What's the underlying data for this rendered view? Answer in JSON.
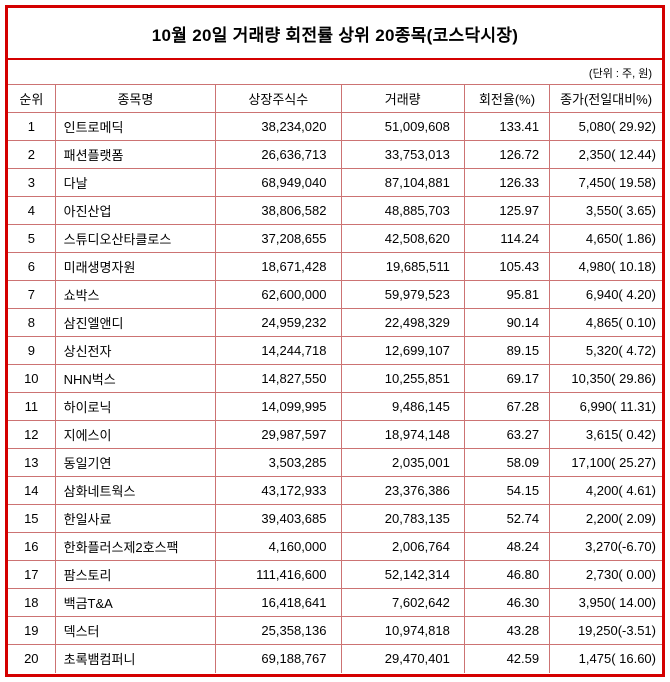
{
  "title": "10월 20일 거래량 회전률 상위 20종목(코스닥시장)",
  "unit_note": "(단위 : 주, 원)",
  "colors": {
    "frame_border": "#d40000",
    "grid_line": "#cc7373",
    "text": "#000000",
    "background": "#ffffff"
  },
  "chart_data": {
    "type": "table",
    "title": "10월 20일 거래량 회전률 상위 20종목(코스닥시장)",
    "unit": "(단위 : 주, 원)",
    "columns": [
      "순위",
      "종목명",
      "상장주식수",
      "거래량",
      "회전율(%)",
      "종가(전일대비%)"
    ],
    "rows": [
      [
        "1",
        "인트로메딕",
        "38,234,020",
        "51,009,608",
        "133.41",
        "5,080( 29.92)"
      ],
      [
        "2",
        "패션플랫폼",
        "26,636,713",
        "33,753,013",
        "126.72",
        "2,350( 12.44)"
      ],
      [
        "3",
        "다날",
        "68,949,040",
        "87,104,881",
        "126.33",
        "7,450( 19.58)"
      ],
      [
        "4",
        "아진산업",
        "38,806,582",
        "48,885,703",
        "125.97",
        "3,550( 3.65)"
      ],
      [
        "5",
        "스튜디오산타클로스",
        "37,208,655",
        "42,508,620",
        "114.24",
        "4,650( 1.86)"
      ],
      [
        "6",
        "미래생명자원",
        "18,671,428",
        "19,685,511",
        "105.43",
        "4,980( 10.18)"
      ],
      [
        "7",
        "쇼박스",
        "62,600,000",
        "59,979,523",
        "95.81",
        "6,940( 4.20)"
      ],
      [
        "8",
        "삼진엘앤디",
        "24,959,232",
        "22,498,329",
        "90.14",
        "4,865( 0.10)"
      ],
      [
        "9",
        "상신전자",
        "14,244,718",
        "12,699,107",
        "89.15",
        "5,320( 4.72)"
      ],
      [
        "10",
        "NHN벅스",
        "14,827,550",
        "10,255,851",
        "69.17",
        "10,350( 29.86)"
      ],
      [
        "11",
        "하이로닉",
        "14,099,995",
        "9,486,145",
        "67.28",
        "6,990( 11.31)"
      ],
      [
        "12",
        "지에스이",
        "29,987,597",
        "18,974,148",
        "63.27",
        "3,615( 0.42)"
      ],
      [
        "13",
        "동일기연",
        "3,503,285",
        "2,035,001",
        "58.09",
        "17,100( 25.27)"
      ],
      [
        "14",
        "삼화네트웍스",
        "43,172,933",
        "23,376,386",
        "54.15",
        "4,200( 4.61)"
      ],
      [
        "15",
        "한일사료",
        "39,403,685",
        "20,783,135",
        "52.74",
        "2,200( 2.09)"
      ],
      [
        "16",
        "한화플러스제2호스팩",
        "4,160,000",
        "2,006,764",
        "48.24",
        "3,270(-6.70)"
      ],
      [
        "17",
        "팜스토리",
        "111,416,600",
        "52,142,314",
        "46.80",
        "2,730( 0.00)"
      ],
      [
        "18",
        "백금T&A",
        "16,418,641",
        "7,602,642",
        "46.30",
        "3,950( 14.00)"
      ],
      [
        "19",
        "덱스터",
        "25,358,136",
        "10,974,818",
        "43.28",
        "19,250(-3.51)"
      ],
      [
        "20",
        "초록뱀컴퍼니",
        "69,188,767",
        "29,470,401",
        "42.59",
        "1,475( 16.60)"
      ]
    ]
  }
}
